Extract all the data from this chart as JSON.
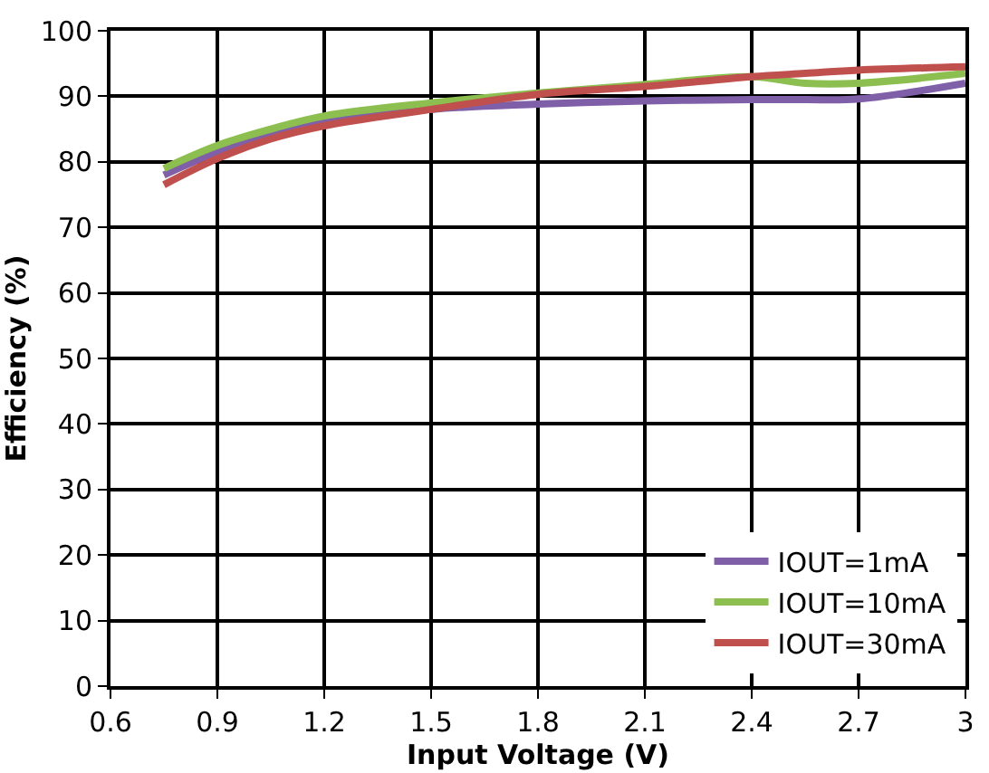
{
  "chart_data": {
    "type": "line",
    "xlabel": "Input Voltage (V)",
    "ylabel": "Efficiency (%)",
    "x": [
      0.75,
      0.9,
      1.05,
      1.2,
      1.5,
      1.8,
      2.1,
      2.4,
      2.55,
      2.7,
      3.0
    ],
    "xlim": [
      0.6,
      3
    ],
    "xticks": [
      0.6,
      0.9,
      1.2,
      1.5,
      1.8,
      2.1,
      2.4,
      2.7,
      3
    ],
    "ylim": [
      0,
      100
    ],
    "yticks": [
      0,
      10,
      20,
      30,
      40,
      50,
      60,
      70,
      80,
      90,
      100
    ],
    "grid": true,
    "legend": "bottom right",
    "line_style": "solid",
    "marker": "none",
    "series": [
      {
        "name": "IOUT=1mA",
        "color": "#7f5fa8",
        "values": [
          78,
          81.5,
          84,
          86,
          88,
          88.8,
          89.3,
          89.5,
          89.5,
          89.6,
          92
        ]
      },
      {
        "name": "IOUT=10mA",
        "color": "#8cbf4f",
        "values": [
          79,
          82.5,
          85,
          87,
          89,
          90.5,
          91.8,
          93,
          92,
          92,
          93.5
        ]
      },
      {
        "name": "IOUT=30mA",
        "color": "#c0504d",
        "values": [
          76.5,
          80.5,
          83.5,
          85.5,
          88,
          90.3,
          91.5,
          93,
          93.5,
          94,
          94.5
        ]
      }
    ]
  }
}
